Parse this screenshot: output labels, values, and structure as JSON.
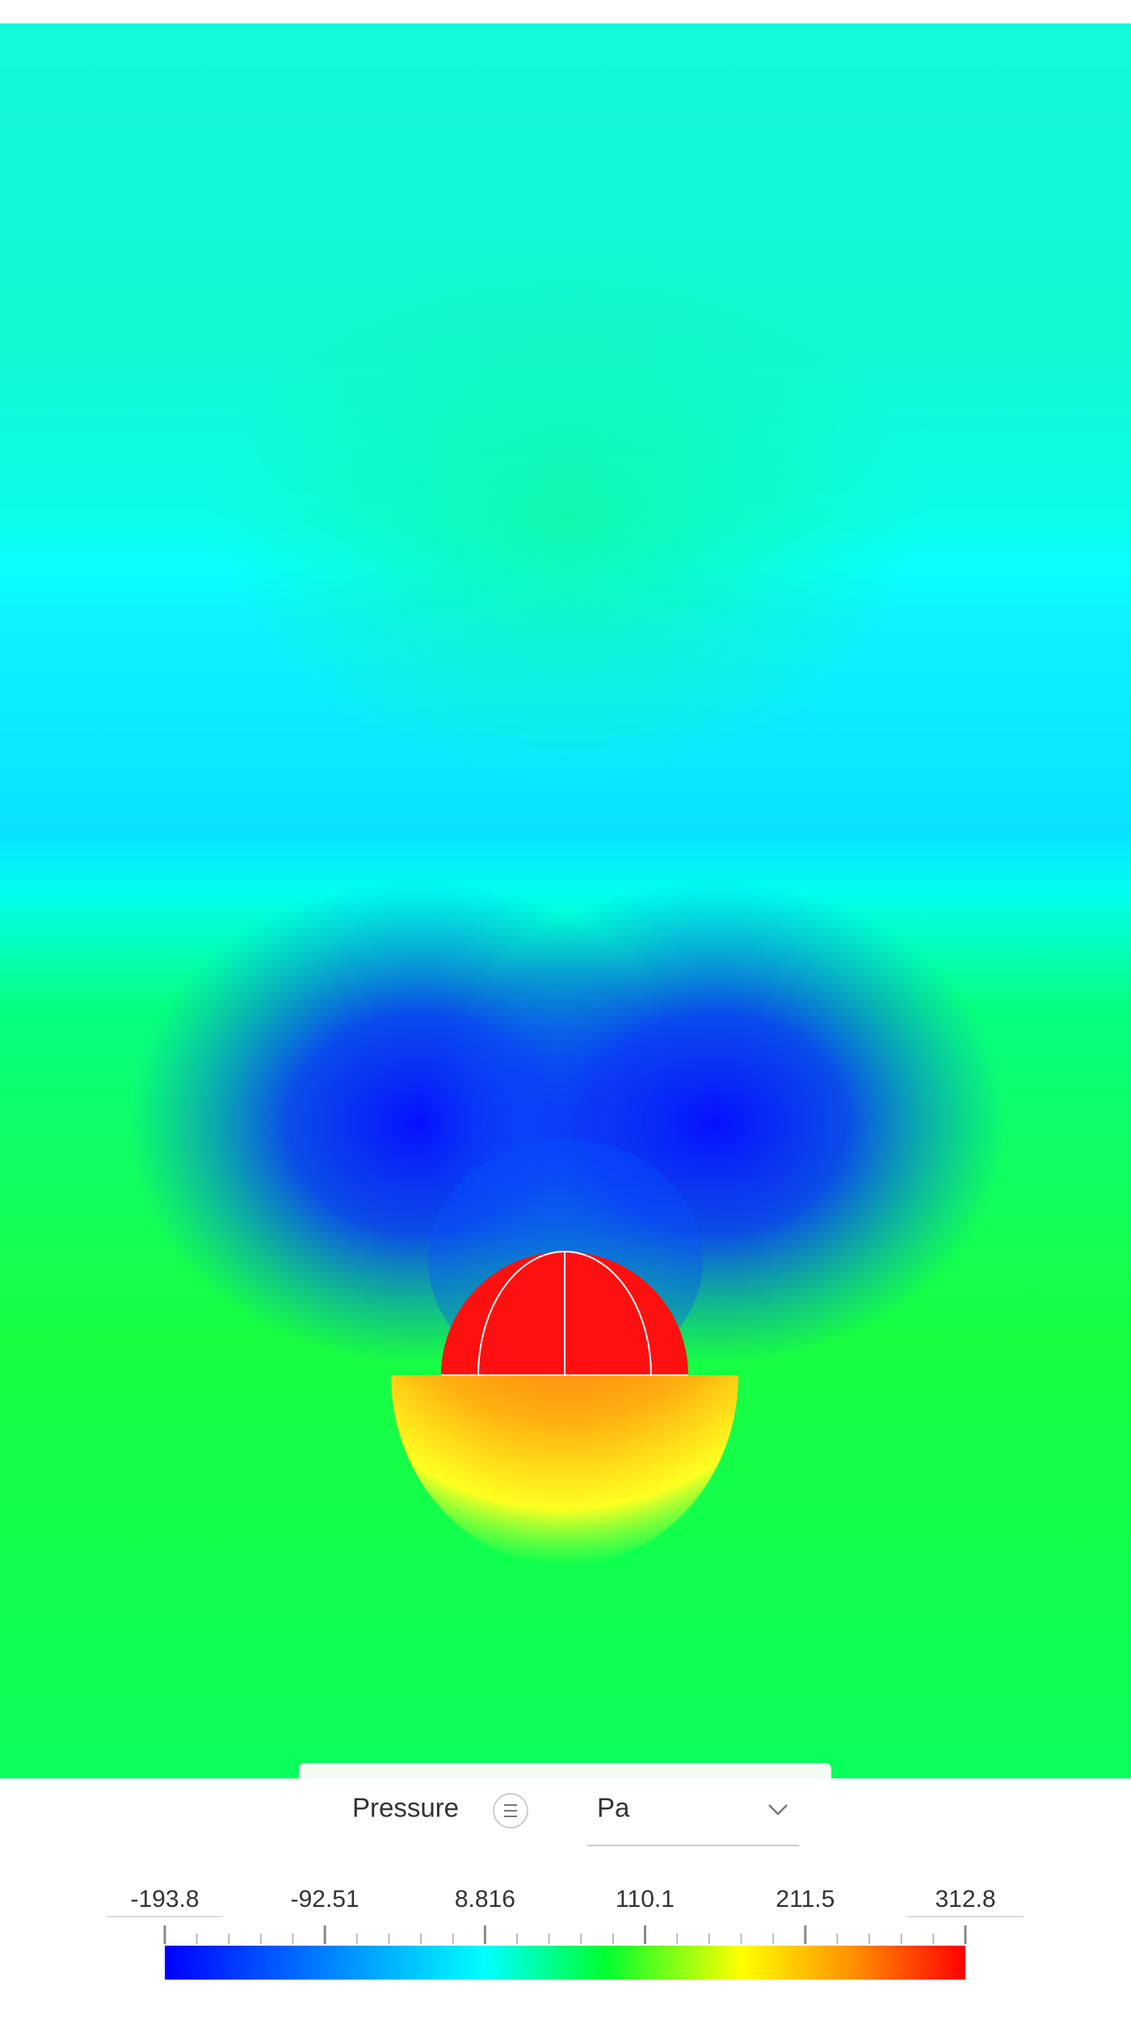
{
  "legend": {
    "quantity": "Pressure",
    "unit": "Pa",
    "ticks": [
      -193.8,
      -92.51,
      8.816,
      110.1,
      211.5,
      312.8
    ]
  }
}
